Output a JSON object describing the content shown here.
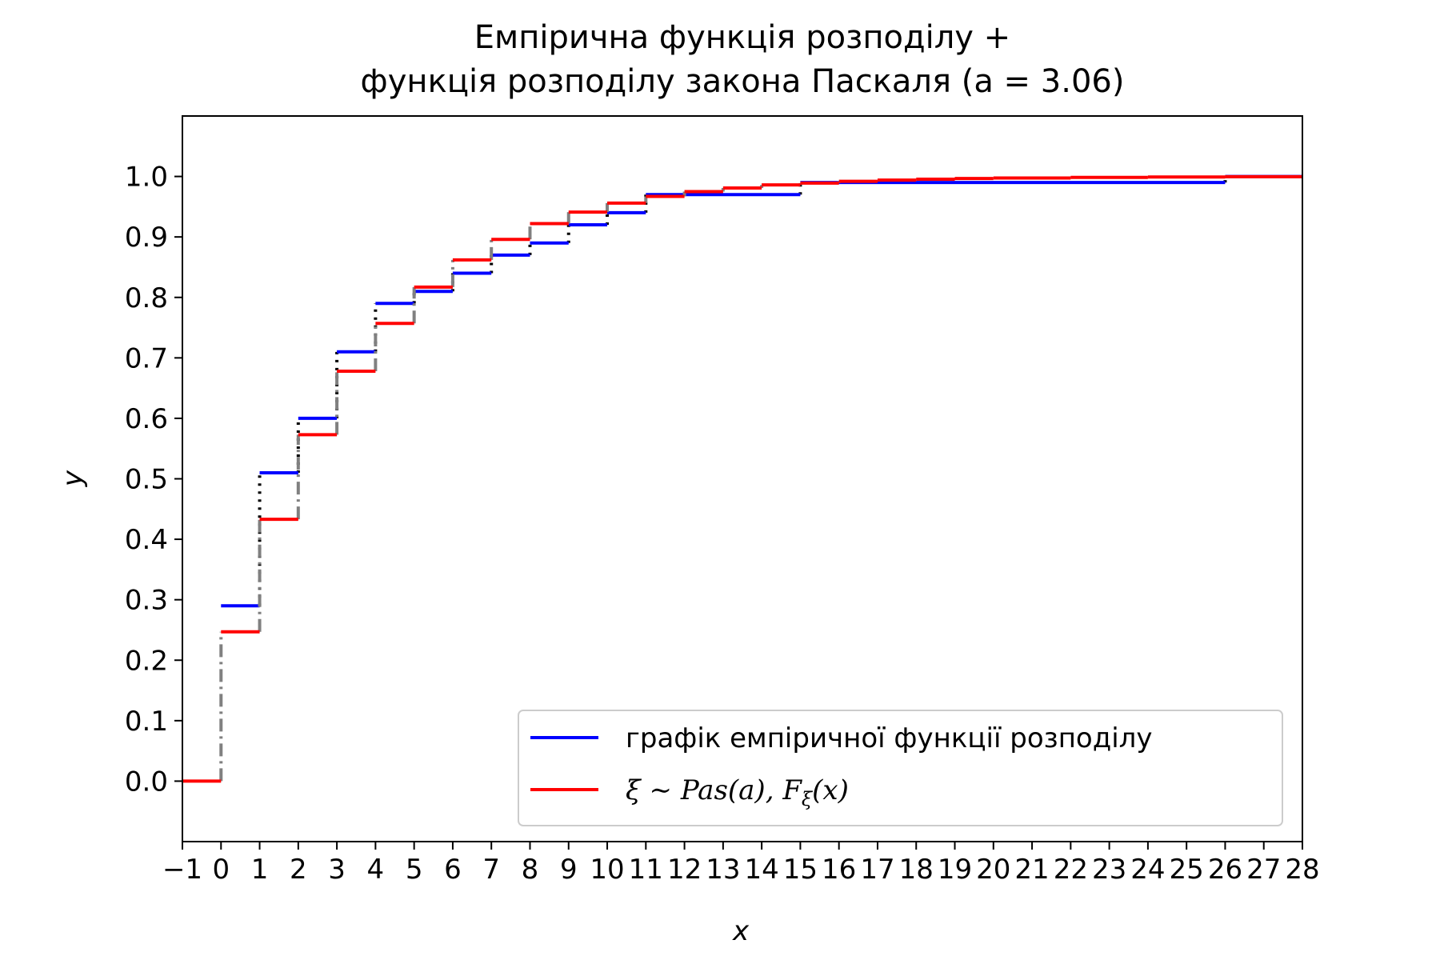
{
  "chart_data": {
    "type": "line",
    "title_lines": [
      "Емпірична функція розподілу +",
      "функція розподілу закона Паскаля (a = 3.06)"
    ],
    "xlabel": "x",
    "ylabel": "y",
    "xlim": [
      -1,
      28
    ],
    "ylim": [
      -0.1,
      1.1
    ],
    "xticks": [
      -1,
      0,
      1,
      2,
      3,
      4,
      5,
      6,
      7,
      8,
      9,
      10,
      11,
      12,
      13,
      14,
      15,
      16,
      17,
      18,
      19,
      20,
      21,
      22,
      23,
      24,
      25,
      26,
      27,
      28
    ],
    "xtick_labels": [
      "−1",
      "0",
      "1",
      "2",
      "3",
      "4",
      "5",
      "6",
      "7",
      "8",
      "9",
      "10",
      "11",
      "12",
      "13",
      "14",
      "15",
      "16",
      "17",
      "18",
      "19",
      "20",
      "21",
      "22",
      "23",
      "24",
      "25",
      "26",
      "27",
      "28"
    ],
    "yticks": [
      0.0,
      0.1,
      0.2,
      0.3,
      0.4,
      0.5,
      0.6,
      0.7,
      0.8,
      0.9,
      1.0
    ],
    "ytick_labels": [
      "0.0",
      "0.1",
      "0.2",
      "0.3",
      "0.4",
      "0.5",
      "0.6",
      "0.7",
      "0.8",
      "0.9",
      "1.0"
    ],
    "grid": false,
    "legend_position": "lower-right",
    "series": [
      {
        "name": "графік емпіричної функції розподілу",
        "color": "#0000ff",
        "connector_color": "#000000",
        "connector_style": "dotted",
        "steps": [
          {
            "x0": 0,
            "x1": 1,
            "y": 0.29
          },
          {
            "x0": 1,
            "x1": 2,
            "y": 0.51
          },
          {
            "x0": 2,
            "x1": 3,
            "y": 0.6
          },
          {
            "x0": 3,
            "x1": 4,
            "y": 0.71
          },
          {
            "x0": 4,
            "x1": 5,
            "y": 0.79
          },
          {
            "x0": 5,
            "x1": 6,
            "y": 0.81
          },
          {
            "x0": 6,
            "x1": 7,
            "y": 0.84
          },
          {
            "x0": 7,
            "x1": 8,
            "y": 0.87
          },
          {
            "x0": 8,
            "x1": 9,
            "y": 0.89
          },
          {
            "x0": 9,
            "x1": 10,
            "y": 0.92
          },
          {
            "x0": 10,
            "x1": 11,
            "y": 0.94
          },
          {
            "x0": 11,
            "x1": 15,
            "y": 0.97
          },
          {
            "x0": 15,
            "x1": 26,
            "y": 0.99
          },
          {
            "x0": 26,
            "x1": 28,
            "y": 1.0
          }
        ]
      },
      {
        "name_prefix": "ξ ∼ Pas(a), F",
        "name_subscript": "ξ",
        "name_suffix": "(x)",
        "color": "#ff0000",
        "connector_color": "#808080",
        "connector_style": "dashdot",
        "steps": [
          {
            "x0": -1,
            "x1": 0,
            "y": 0.0
          },
          {
            "x0": 0,
            "x1": 1,
            "y": 0.247
          },
          {
            "x0": 1,
            "x1": 2,
            "y": 0.433
          },
          {
            "x0": 2,
            "x1": 3,
            "y": 0.573
          },
          {
            "x0": 3,
            "x1": 4,
            "y": 0.678
          },
          {
            "x0": 4,
            "x1": 5,
            "y": 0.757
          },
          {
            "x0": 5,
            "x1": 6,
            "y": 0.817
          },
          {
            "x0": 6,
            "x1": 7,
            "y": 0.862
          },
          {
            "x0": 7,
            "x1": 8,
            "y": 0.896
          },
          {
            "x0": 8,
            "x1": 9,
            "y": 0.922
          },
          {
            "x0": 9,
            "x1": 10,
            "y": 0.941
          },
          {
            "x0": 10,
            "x1": 11,
            "y": 0.956
          },
          {
            "x0": 11,
            "x1": 12,
            "y": 0.967
          },
          {
            "x0": 12,
            "x1": 13,
            "y": 0.975
          },
          {
            "x0": 13,
            "x1": 14,
            "y": 0.981
          },
          {
            "x0": 14,
            "x1": 15,
            "y": 0.986
          },
          {
            "x0": 15,
            "x1": 16,
            "y": 0.989
          },
          {
            "x0": 16,
            "x1": 17,
            "y": 0.992
          },
          {
            "x0": 17,
            "x1": 18,
            "y": 0.994
          },
          {
            "x0": 18,
            "x1": 19,
            "y": 0.9955
          },
          {
            "x0": 19,
            "x1": 20,
            "y": 0.9966
          },
          {
            "x0": 20,
            "x1": 22,
            "y": 0.9975
          },
          {
            "x0": 22,
            "x1": 24,
            "y": 0.9985
          },
          {
            "x0": 24,
            "x1": 26,
            "y": 0.9992
          },
          {
            "x0": 26,
            "x1": 28,
            "y": 0.9996
          }
        ]
      }
    ]
  }
}
